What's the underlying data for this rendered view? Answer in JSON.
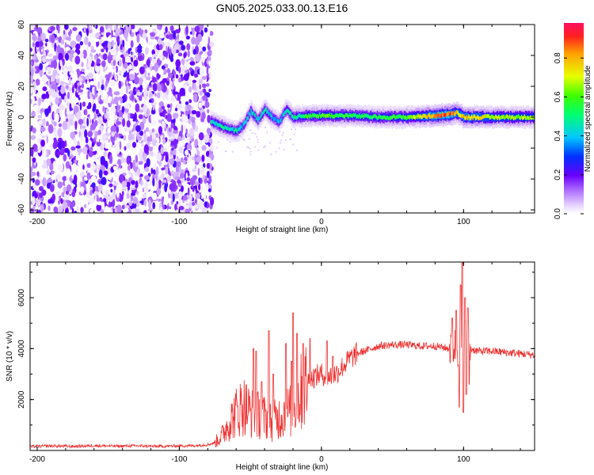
{
  "figure": {
    "title": "GN05.2025.033.00.13.E16"
  },
  "colors": {
    "snr_line": "#ee3333",
    "axis": "#000000",
    "background": "#ffffff"
  },
  "chart_data": [
    {
      "type": "heatmap",
      "title": "",
      "xlabel": "Height of straight line (km)",
      "ylabel": "Frequency (Hz)",
      "xlim": [
        -205,
        150
      ],
      "ylim": [
        -62,
        60
      ],
      "x_ticks": [
        "-200",
        "-100",
        "0",
        "100"
      ],
      "y_ticks": [
        "-60",
        "-40",
        "-20",
        "0",
        "20",
        "40",
        "60"
      ],
      "colorbar": {
        "label": "Normalized spectral amplitude",
        "range": [
          0,
          0.98
        ],
        "ticks": [
          "0.0",
          "0.2",
          "0.4",
          "0.6",
          "0.8"
        ]
      },
      "noise_region_x": [
        -205,
        -77
      ],
      "ridge": {
        "x": [
          -78,
          -70,
          -65,
          -60,
          -55,
          -50,
          -45,
          -40,
          -35,
          -30,
          -25,
          -20,
          -10,
          0,
          20,
          40,
          60,
          80,
          90,
          95,
          100,
          120,
          150
        ],
        "frequency_hz": [
          -3,
          -6,
          -8,
          -9,
          -5,
          4,
          -2,
          5,
          0,
          -3,
          5,
          0,
          1,
          1,
          1,
          0,
          0,
          1,
          2,
          3,
          0,
          0,
          0
        ],
        "amplitude": [
          0.45,
          0.5,
          0.45,
          0.5,
          0.4,
          0.45,
          0.4,
          0.5,
          0.4,
          0.4,
          0.45,
          0.5,
          0.55,
          0.6,
          0.55,
          0.55,
          0.6,
          0.85,
          0.9,
          0.75,
          0.8,
          0.7,
          0.65
        ]
      }
    },
    {
      "type": "line",
      "title": "",
      "xlabel": "Height of straight line (km)",
      "ylabel": "SNR (10 * v/v)",
      "xlim": [
        -205,
        150
      ],
      "ylim": [
        0,
        7400
      ],
      "x_ticks": [
        "-200",
        "-100",
        "0",
        "100"
      ],
      "y_ticks": [
        "2000",
        "4000",
        "6000"
      ],
      "series": [
        {
          "x": [
            -205,
            -190,
            -175,
            -160,
            -145,
            -130,
            -115,
            -100,
            -90,
            -80,
            -75,
            -70,
            -65,
            -60,
            -55,
            -50,
            -45,
            -40,
            -35,
            -30,
            -25,
            -20,
            -15,
            -10,
            -5,
            0,
            5,
            10,
            15,
            20,
            25,
            30,
            40,
            50,
            60,
            70,
            80,
            85,
            90,
            95,
            98,
            100,
            102,
            105,
            110,
            120,
            130,
            140,
            150
          ],
          "values": [
            150,
            180,
            160,
            190,
            170,
            180,
            160,
            180,
            190,
            230,
            300,
            600,
            1100,
            1500,
            1800,
            1500,
            1400,
            1300,
            1100,
            1300,
            1500,
            1600,
            2200,
            2700,
            2900,
            3000,
            2900,
            3000,
            3300,
            3600,
            3800,
            3900,
            4100,
            4150,
            4150,
            4100,
            4100,
            4050,
            4000,
            4100,
            3800,
            4100,
            4300,
            4000,
            3900,
            3900,
            3850,
            3800,
            3750
          ]
        }
      ],
      "spikes": [
        {
          "x": -48,
          "value": 4000
        },
        {
          "x": -46,
          "value": 3900
        },
        {
          "x": -42,
          "value": 2700
        },
        {
          "x": -37,
          "value": 4700
        },
        {
          "x": -34,
          "value": 3000
        },
        {
          "x": -25,
          "value": 4200
        },
        {
          "x": -21,
          "value": 3500
        },
        {
          "x": -20,
          "value": 5400
        },
        {
          "x": -17,
          "value": 4600
        },
        {
          "x": -13,
          "value": 4200
        },
        {
          "x": -8,
          "value": 4400
        },
        {
          "x": 4,
          "value": 4300
        },
        {
          "x": 8,
          "value": 3700
        },
        {
          "x": 92,
          "value": 5200
        },
        {
          "x": 95,
          "value": 5500
        },
        {
          "x": 98,
          "value": 6500
        },
        {
          "x": 99,
          "value": 7400
        },
        {
          "x": 101,
          "value": 6000
        },
        {
          "x": 103,
          "value": 5600
        }
      ],
      "dips": [
        {
          "x": 97,
          "value": 1700
        },
        {
          "x": 100,
          "value": 1500
        },
        {
          "x": 102,
          "value": 2200
        },
        {
          "x": 104,
          "value": 2600
        }
      ]
    }
  ]
}
